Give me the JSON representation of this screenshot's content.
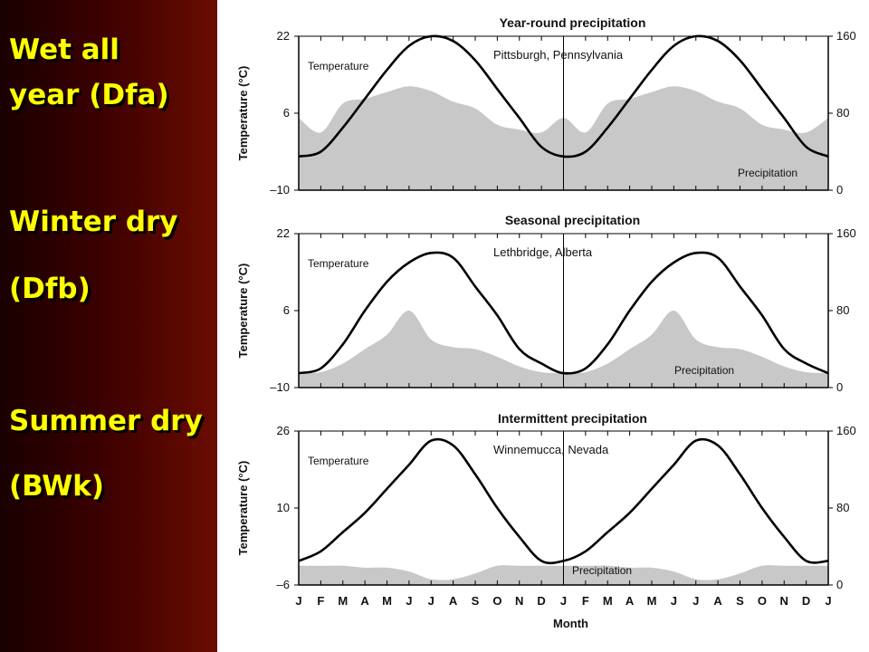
{
  "labels": {
    "wet_line1": "Wet all",
    "wet_line2": "year (Dfa)",
    "winter_line1": "Winter dry",
    "winter_line2": "(Dfb)",
    "summer_line1": "Summer dry",
    "summer_line2": "(BWk)"
  },
  "colors": {
    "label_text": "#ffff00",
    "panel_dark": "#1a0000",
    "panel_light": "#6a0c00",
    "precip_fill": "#c8c8c8",
    "temp_line": "#000000"
  },
  "chart_data": [
    {
      "type": "area",
      "title": "Year-round precipitation",
      "station": "Pittsburgh, Pennsylvania",
      "ylabel": "Temperature (°C)",
      "xlabel": "Month",
      "temp_ylim": [
        -10,
        22
      ],
      "temp_ticks": [
        "22",
        "6",
        "–10"
      ],
      "precip_ylim": [
        0,
        160
      ],
      "precip_ticks": [
        "160",
        "80",
        "0"
      ],
      "temp_annotation": "Temperature",
      "precip_annotation": "Precipitation",
      "months": [
        "J",
        "F",
        "M",
        "A",
        "M",
        "J",
        "J",
        "A",
        "S",
        "O",
        "N",
        "D",
        "J",
        "F",
        "M",
        "A",
        "M",
        "J",
        "J",
        "A",
        "S",
        "O",
        "N",
        "D",
        "J"
      ],
      "temperature": [
        -3,
        -2,
        3,
        9,
        15,
        20,
        22,
        21,
        17,
        11,
        5,
        -1,
        -3,
        -2,
        3,
        9,
        15,
        20,
        22,
        21,
        17,
        11,
        5,
        -1,
        -3
      ],
      "precipitation": [
        75,
        60,
        90,
        95,
        102,
        108,
        103,
        92,
        85,
        68,
        63,
        60,
        75,
        60,
        90,
        95,
        102,
        108,
        103,
        92,
        85,
        68,
        63,
        60,
        75
      ]
    },
    {
      "type": "area",
      "title": "Seasonal precipitation",
      "station": "Lethbridge, Alberta",
      "ylabel": "Temperature (°C)",
      "xlabel": "Month",
      "temp_ylim": [
        -10,
        22
      ],
      "temp_ticks": [
        "22",
        "6",
        "–10"
      ],
      "precip_ylim": [
        0,
        160
      ],
      "precip_ticks": [
        "160",
        "80",
        "0"
      ],
      "temp_annotation": "Temperature",
      "precip_annotation": "Precipitation",
      "months": [
        "J",
        "F",
        "M",
        "A",
        "M",
        "J",
        "J",
        "A",
        "S",
        "O",
        "N",
        "D",
        "J",
        "F",
        "M",
        "A",
        "M",
        "J",
        "J",
        "A",
        "S",
        "O",
        "N",
        "D",
        "J"
      ],
      "temperature": [
        -7,
        -6,
        -1,
        6,
        12,
        16,
        18,
        17,
        11,
        5,
        -2,
        -5,
        -7,
        -6,
        -1,
        6,
        12,
        16,
        18,
        17,
        11,
        5,
        -2,
        -5,
        -7
      ],
      "precipitation": [
        15,
        16,
        25,
        40,
        55,
        80,
        50,
        42,
        40,
        32,
        22,
        16,
        15,
        16,
        25,
        40,
        55,
        80,
        50,
        42,
        40,
        32,
        22,
        16,
        15
      ]
    },
    {
      "type": "area",
      "title": "Intermittent precipitation",
      "station": "Winnemucca, Nevada",
      "ylabel": "Temperature (°C)",
      "xlabel": "Month",
      "temp_ylim": [
        -6,
        26
      ],
      "temp_ticks": [
        "26",
        "10",
        "–6"
      ],
      "precip_ylim": [
        0,
        160
      ],
      "precip_ticks": [
        "160",
        "80",
        "0"
      ],
      "temp_annotation": "Temperature",
      "precip_annotation": "Precipitation",
      "months": [
        "J",
        "F",
        "M",
        "A",
        "M",
        "J",
        "J",
        "A",
        "S",
        "O",
        "N",
        "D",
        "J",
        "F",
        "M",
        "A",
        "M",
        "J",
        "J",
        "A",
        "S",
        "O",
        "N",
        "D",
        "J"
      ],
      "temperature": [
        -1,
        1,
        5,
        9,
        14,
        19,
        24,
        23,
        17,
        10,
        4,
        -1,
        -1,
        1,
        5,
        9,
        14,
        19,
        24,
        23,
        17,
        10,
        4,
        -1,
        -1
      ],
      "precipitation": [
        20,
        20,
        20,
        18,
        18,
        14,
        6,
        6,
        12,
        20,
        20,
        20,
        20,
        20,
        20,
        18,
        18,
        14,
        6,
        6,
        12,
        20,
        20,
        20,
        20
      ]
    }
  ]
}
